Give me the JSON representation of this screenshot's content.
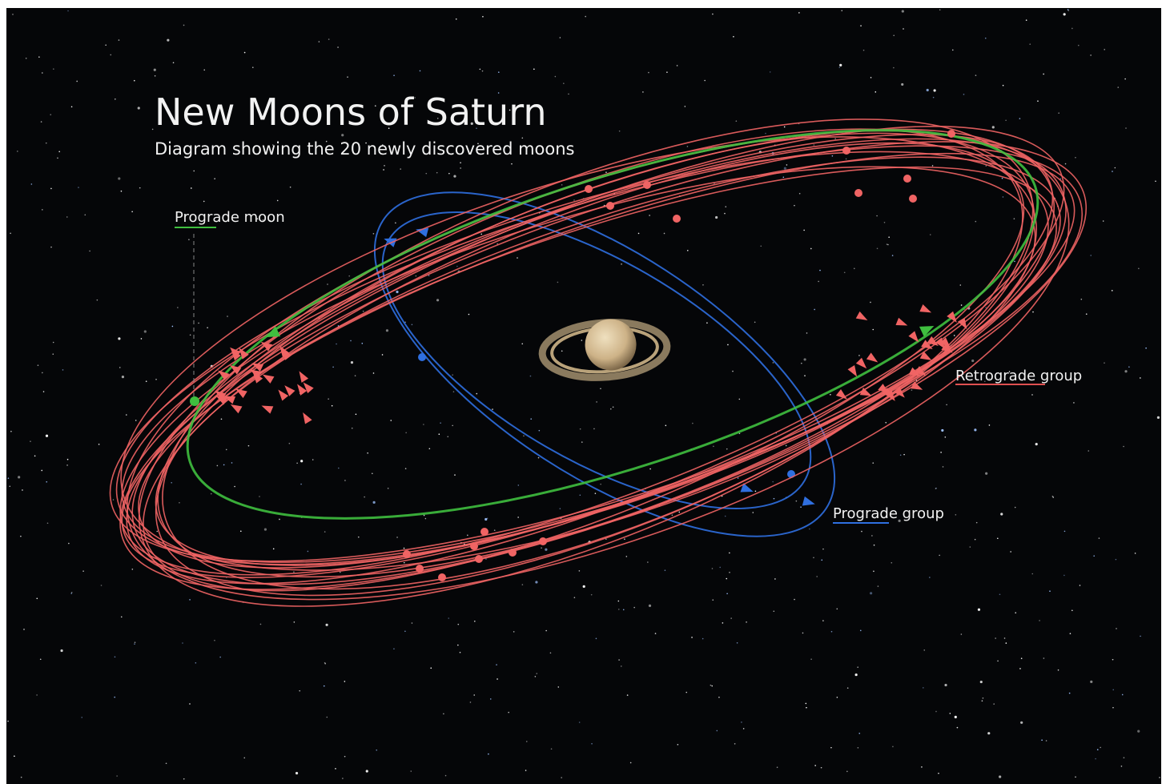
{
  "header": {
    "title": "New Moons of Saturn",
    "subtitle": "Diagram showing the 20 newly discovered moons"
  },
  "labels": {
    "prograde_moon": "Prograde moon",
    "retrograde_group": "Retrograde group",
    "prograde_group": "Prograde group"
  }
}
